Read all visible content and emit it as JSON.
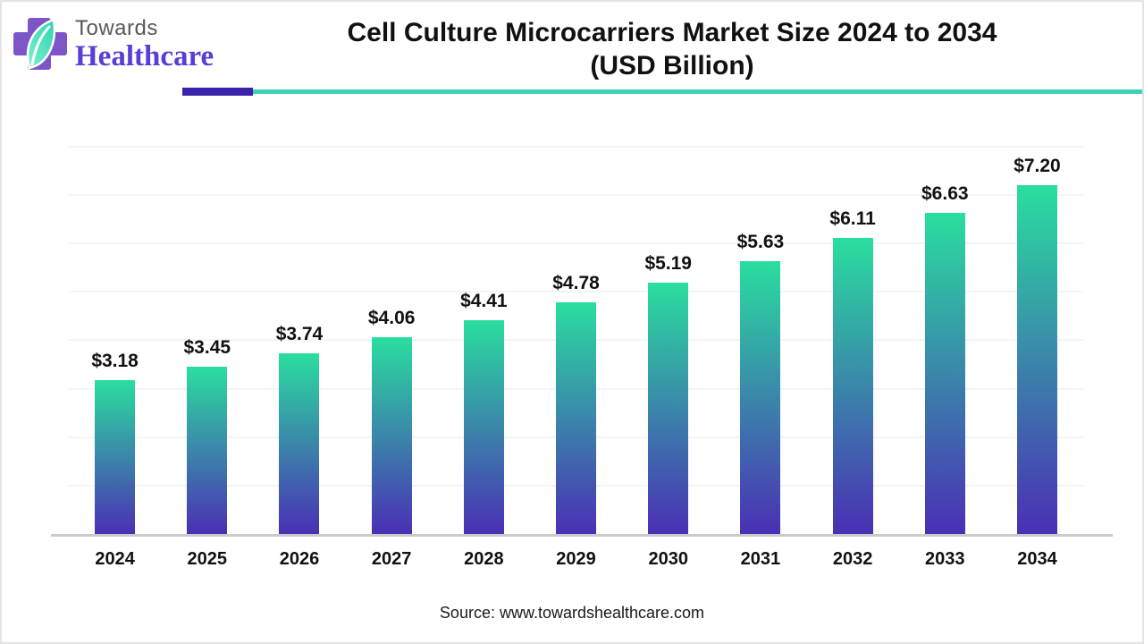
{
  "brand": {
    "logo_icon": "cross-leaf-icon",
    "name_line1": "Towards",
    "name_line2": "Healthcare",
    "colors": {
      "cross_purple": "#7d55c7",
      "leaf_teal_light": "#7ef0d2",
      "leaf_teal": "#2cd4ae",
      "towards_gray": "#58595b",
      "healthcare_purple": "#5b3cd6"
    }
  },
  "header": {
    "title_line1": "Cell Culture Microcarriers Market Size 2024 to 2034",
    "title_line2": "(USD Billion)",
    "divider_accent_color": "#3b22a9",
    "divider_line_color": "#3dd2b4"
  },
  "chart_data": {
    "type": "bar",
    "title": "Cell Culture Microcarriers Market Size 2024 to 2034 (USD Billion)",
    "categories": [
      "2024",
      "2025",
      "2026",
      "2027",
      "2028",
      "2029",
      "2030",
      "2031",
      "2032",
      "2033",
      "2034"
    ],
    "values": [
      3.18,
      3.45,
      3.74,
      4.06,
      4.41,
      4.78,
      5.19,
      5.63,
      6.11,
      6.63,
      7.2
    ],
    "bar_labels": [
      "$3.18",
      "$3.45",
      "$3.74",
      "$4.06",
      "$4.41",
      "$4.78",
      "$5.19",
      "$5.63",
      "$6.11",
      "$6.63",
      "$7.20"
    ],
    "xlabel": "",
    "ylabel": "",
    "ylim": [
      0,
      8
    ],
    "gridline_step": 1,
    "grid": true,
    "legend": false,
    "bar_color_top": "#2ade9f",
    "bar_color_bottom": "#4a2fb5",
    "gridline_color": "#f4f4f4",
    "axis_line_color": "#cbcbcb",
    "value_label_color": "#111111"
  },
  "footer": {
    "source_text": "Source: www.towardshealthcare.com"
  }
}
